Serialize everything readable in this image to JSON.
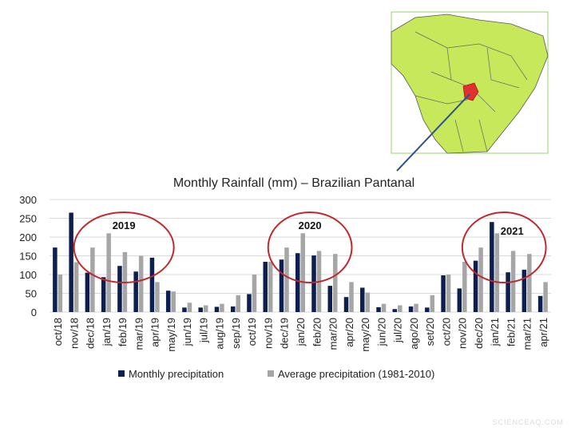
{
  "chart_data": {
    "type": "bar",
    "title": "Monthly Rainfall (mm) – Brazilian Pantanal",
    "xlabel": "",
    "ylabel": "",
    "ylim": [
      0,
      300
    ],
    "yticks": [
      0,
      50,
      100,
      150,
      200,
      250,
      300
    ],
    "grid": true,
    "legend_position": "bottom",
    "categories": [
      "oct/18",
      "nov/18",
      "dec/18",
      "jan/19",
      "feb/19",
      "mar/19",
      "apr/19",
      "may/19",
      "jun/19",
      "jul/19",
      "aug/19",
      "sep/19",
      "oct/19",
      "nov/19",
      "dec/19",
      "jan/20",
      "feb/20",
      "mar/20",
      "apr/20",
      "may/20",
      "jun/20",
      "jul/20",
      "ago/20",
      "set/20",
      "oct/20",
      "nov/20",
      "dec/20",
      "jan/21",
      "feb/21",
      "mar/21",
      "apr/21"
    ],
    "series": [
      {
        "name": "Monthly precipitation",
        "color": "#0d1f4f",
        "values": [
          172,
          265,
          105,
          93,
          123,
          108,
          145,
          57,
          12,
          12,
          14,
          15,
          48,
          134,
          140,
          157,
          151,
          70,
          40,
          65,
          13,
          8,
          15,
          12,
          98,
          63,
          137,
          240,
          106,
          113,
          43
        ]
      },
      {
        "name": "Average precipitation (1981-2010)",
        "color": "#a6a6a6",
        "values": [
          100,
          133,
          172,
          210,
          160,
          150,
          80,
          55,
          25,
          18,
          22,
          45,
          100,
          134,
          172,
          210,
          163,
          155,
          80,
          52,
          22,
          18,
          22,
          45,
          100,
          134,
          172,
          210,
          163,
          155,
          80
        ]
      }
    ],
    "annotations": [
      {
        "text": "2019",
        "span": [
          "dec/18",
          "apr/19"
        ],
        "color": "#c0282d"
      },
      {
        "text": "2020",
        "span": [
          "dec/19",
          "mar/20"
        ],
        "color": "#c0282d"
      },
      {
        "text": "2021",
        "span": [
          "dec/20",
          "mar/21"
        ],
        "color": "#c0282d"
      }
    ]
  },
  "map": {
    "highlight_color": "#e03030",
    "land_color": "#c6e85a"
  },
  "watermark": "SCIENCEAQ.COM"
}
